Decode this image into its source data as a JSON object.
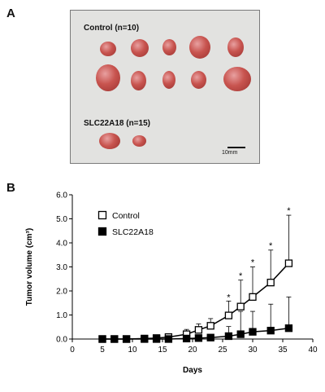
{
  "panel_a": {
    "letter": "A",
    "control_label": "Control  (n=10)",
    "slc_label": "SLC22A18  (n=15)",
    "scale_label": "10mm"
  },
  "panel_b": {
    "letter": "B"
  },
  "chart_data": {
    "type": "line",
    "xlabel": "Days",
    "ylabel": "Tumor volume (cm³)",
    "xlim": [
      0,
      40
    ],
    "ylim": [
      0,
      6
    ],
    "xticks": [
      0,
      5,
      10,
      15,
      20,
      25,
      30,
      35,
      40
    ],
    "yticks": [
      "0.0",
      "1.0",
      "2.0",
      "3.0",
      "4.0",
      "5.0",
      "6.0"
    ],
    "legend": "top-left",
    "series": [
      {
        "name": "Control",
        "marker": "open-square",
        "color": "#000000",
        "x": [
          5,
          7,
          9,
          12,
          14,
          16,
          19,
          21,
          23,
          26,
          28,
          30,
          33,
          36
        ],
        "y": [
          0.0,
          0.0,
          0.0,
          0.02,
          0.04,
          0.08,
          0.2,
          0.38,
          0.55,
          0.98,
          1.35,
          1.75,
          2.35,
          3.15
        ],
        "err": [
          0,
          0,
          0,
          0.03,
          0.05,
          0.1,
          0.2,
          0.25,
          0.3,
          0.6,
          1.1,
          1.25,
          1.35,
          2.0
        ]
      },
      {
        "name": "SLC22A18",
        "marker": "filled-square",
        "color": "#000000",
        "x": [
          5,
          7,
          9,
          12,
          14,
          16,
          19,
          21,
          23,
          26,
          28,
          30,
          33,
          36
        ],
        "y": [
          0.0,
          0.0,
          0.0,
          0.0,
          0.0,
          0.0,
          0.02,
          0.04,
          0.06,
          0.12,
          0.2,
          0.3,
          0.35,
          0.45
        ],
        "err": [
          0,
          0,
          0,
          0,
          0,
          0,
          0.02,
          0.05,
          0.1,
          0.4,
          0.95,
          0.85,
          1.1,
          1.3
        ]
      }
    ],
    "annotations": [
      {
        "text": "*",
        "x": 26,
        "y": 1.75
      },
      {
        "text": "*",
        "x": 28,
        "y": 2.65
      },
      {
        "text": "*",
        "x": 30,
        "y": 3.2
      },
      {
        "text": "*",
        "x": 33,
        "y": 3.9
      },
      {
        "text": "*",
        "x": 36,
        "y": 5.35
      }
    ]
  }
}
